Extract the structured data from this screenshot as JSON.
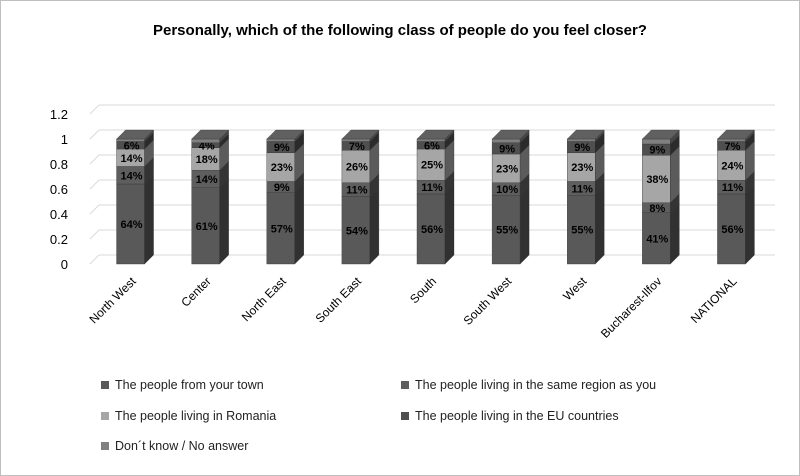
{
  "chart_data": {
    "type": "bar",
    "stacked": true,
    "title": "Personally, which of the following class of people do you feel closer?",
    "categories": [
      "North West",
      "Center",
      "North East",
      "South East",
      "South",
      "South West",
      "West",
      "Bucharest-Ilfov",
      "NATIONAL"
    ],
    "yticks": [
      "0",
      "0.2",
      "0.4",
      "0.6",
      "0.8",
      "1",
      "1.2"
    ],
    "ylim": [
      0,
      1.2
    ],
    "grid": true,
    "legend_position": "bottom",
    "series": [
      {
        "name": "The people from your town",
        "color": "#595959",
        "values": [
          0.64,
          0.61,
          0.57,
          0.54,
          0.56,
          0.55,
          0.55,
          0.41,
          0.56
        ],
        "labels": [
          "64%",
          "61%",
          "57%",
          "54%",
          "56%",
          "55%",
          "55%",
          "41%",
          "56%"
        ]
      },
      {
        "name": "The people living in the same region as you",
        "color": "#5e5e5e",
        "values": [
          0.14,
          0.14,
          0.09,
          0.11,
          0.11,
          0.1,
          0.11,
          0.08,
          0.11
        ],
        "labels": [
          "14%",
          "14%",
          "9%",
          "11%",
          "11%",
          "10%",
          "11%",
          "8%",
          "11%"
        ]
      },
      {
        "name": "The people living in Romania",
        "color": "#a6a6a6",
        "values": [
          0.14,
          0.18,
          0.23,
          0.26,
          0.25,
          0.23,
          0.23,
          0.38,
          0.24
        ],
        "labels": [
          "14%",
          "18%",
          "23%",
          "26%",
          "25%",
          "23%",
          "23%",
          "38%",
          "24%"
        ]
      },
      {
        "name": "The people living in the EU countries",
        "color": "#4f4f4f",
        "values": [
          0.06,
          0.04,
          0.09,
          0.07,
          0.06,
          0.09,
          0.09,
          0.09,
          0.07
        ],
        "labels": [
          "6%",
          "4%",
          "9%",
          "7%",
          "6%",
          "9%",
          "9%",
          "9%",
          "7%"
        ]
      },
      {
        "name": "Don´t know / No answer",
        "color": "#808080",
        "values": [
          0.02,
          0.03,
          0.02,
          0.02,
          0.02,
          0.03,
          0.02,
          0.04,
          0.02
        ],
        "labels": [
          "",
          "",
          "",
          "",
          "",
          "",
          "",
          "",
          ""
        ]
      }
    ]
  }
}
